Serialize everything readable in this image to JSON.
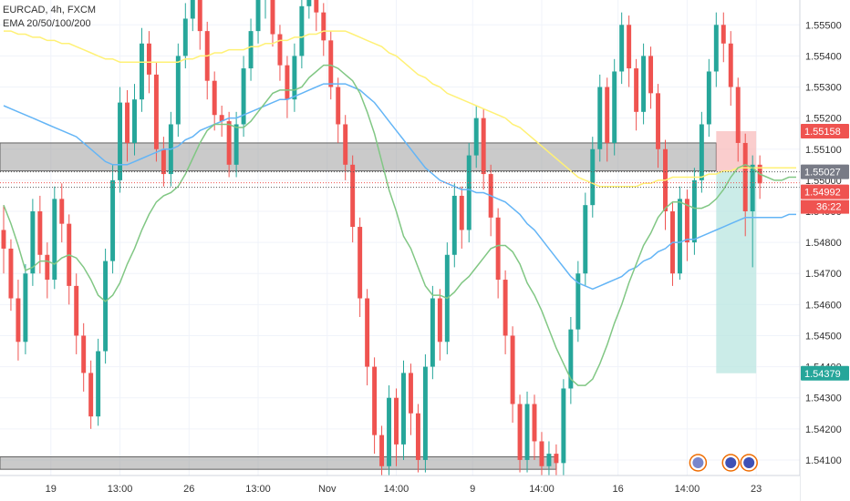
{
  "legend": {
    "symbol_line": "EURCAD, 4h, FXCM",
    "indicator_line": "EMA 20/50/100/200"
  },
  "colors": {
    "up": "#26a69a",
    "down": "#ef5350",
    "ema20": "#81c784",
    "ema50": "#64b5f6",
    "ema100": "#fff176",
    "zone": "#9e9e9e",
    "stop_zone": "#f8bcbc",
    "target_zone": "#b9e6e0",
    "grid": "#f0f3fa"
  },
  "chart_data": {
    "type": "candlestick",
    "title": "",
    "y_axis": {
      "range": [
        1.5405,
        1.5558
      ],
      "ticks": [
        1.555,
        1.554,
        1.553,
        1.552,
        1.551,
        1.55,
        1.549,
        1.548,
        1.547,
        1.546,
        1.545,
        1.544,
        1.543,
        1.542,
        1.541
      ],
      "tick_labels": [
        "1.55500",
        "1.55400",
        "1.55300",
        "1.55200",
        "1.55100",
        "1.55000",
        "1.54900",
        "1.54800",
        "1.54700",
        "1.54600",
        "1.54500",
        "1.54400",
        "1.54300",
        "1.54200",
        "1.54100"
      ]
    },
    "x_axis": {
      "range": [
        0,
        110
      ],
      "ticks": [
        {
          "x": 7,
          "label": "19"
        },
        {
          "x": 16.5,
          "label": "13:00"
        },
        {
          "x": 26,
          "label": "26"
        },
        {
          "x": 35.5,
          "label": "13:00"
        },
        {
          "x": 45,
          "label": "Nov"
        },
        {
          "x": 54.5,
          "label": "14:00"
        },
        {
          "x": 65,
          "label": "9"
        },
        {
          "x": 74.5,
          "label": "14:00"
        },
        {
          "x": 85,
          "label": "16"
        },
        {
          "x": 94.5,
          "label": "14:00"
        },
        {
          "x": 104,
          "label": "23"
        }
      ]
    },
    "zones": [
      {
        "name": "resistance",
        "from": 1.5503,
        "to": 1.5512,
        "x_from": 0,
        "x_to": 98.5
      },
      {
        "name": "support",
        "from": 1.5407,
        "to": 1.5411,
        "x_from": 0,
        "x_to": 76.5
      },
      {
        "name": "stop",
        "from": 1.55027,
        "to": 1.55158,
        "x_from": 98.5,
        "x_to": 104
      },
      {
        "name": "target",
        "from": 1.54379,
        "to": 1.55027,
        "x_from": 98.5,
        "x_to": 104
      }
    ],
    "price_labels": [
      {
        "value": 1.55158,
        "label": "1.55158",
        "kind": "stop"
      },
      {
        "value": 1.55027,
        "label": "1.55027",
        "kind": "entry"
      },
      {
        "value": 1.54992,
        "label": "1.54992",
        "kind": "last"
      },
      {
        "value": 1.54379,
        "label": "1.54379",
        "kind": "target"
      }
    ],
    "countdown": "36:22",
    "candles": [
      [
        1.5484,
        1.5478,
        1.5492,
        1.547
      ],
      [
        1.5478,
        1.5462,
        1.5481,
        1.5458
      ],
      [
        1.5462,
        1.5448,
        1.5468,
        1.5442
      ],
      [
        1.5448,
        1.547,
        1.5473,
        1.5444
      ],
      [
        1.547,
        1.549,
        1.5494,
        1.5466
      ],
      [
        1.549,
        1.5476,
        1.5495,
        1.547
      ],
      [
        1.5476,
        1.5468,
        1.548,
        1.5462
      ],
      [
        1.5468,
        1.5494,
        1.5498,
        1.5465
      ],
      [
        1.5494,
        1.5486,
        1.5499,
        1.548
      ],
      [
        1.5486,
        1.5466,
        1.5489,
        1.546
      ],
      [
        1.5466,
        1.545,
        1.547,
        1.5444
      ],
      [
        1.545,
        1.5438,
        1.5454,
        1.5432
      ],
      [
        1.5438,
        1.5424,
        1.5442,
        1.542
      ],
      [
        1.5424,
        1.5445,
        1.5449,
        1.5421
      ],
      [
        1.5445,
        1.5474,
        1.5478,
        1.5441
      ],
      [
        1.5474,
        1.55,
        1.5505,
        1.547
      ],
      [
        1.55,
        1.5525,
        1.553,
        1.5496
      ],
      [
        1.5525,
        1.5512,
        1.5529,
        1.5506
      ],
      [
        1.5512,
        1.5526,
        1.5531,
        1.5508
      ],
      [
        1.5526,
        1.5544,
        1.5549,
        1.5522
      ],
      [
        1.5544,
        1.5534,
        1.5548,
        1.5528
      ],
      [
        1.5534,
        1.551,
        1.5538,
        1.5506
      ],
      [
        1.551,
        1.5502,
        1.5514,
        1.5498
      ],
      [
        1.5502,
        1.5518,
        1.5522,
        1.5498
      ],
      [
        1.5518,
        1.554,
        1.5544,
        1.5514
      ],
      [
        1.554,
        1.5552,
        1.5557,
        1.5536
      ],
      [
        1.5552,
        1.556,
        1.5563,
        1.5548
      ],
      [
        1.556,
        1.5548,
        1.5564,
        1.5542
      ],
      [
        1.5548,
        1.5532,
        1.5551,
        1.5526
      ],
      [
        1.5532,
        1.5521,
        1.5535,
        1.5516
      ],
      [
        1.5521,
        1.5519,
        1.5524,
        1.5514
      ],
      [
        1.5519,
        1.5505,
        1.5522,
        1.5501
      ],
      [
        1.5505,
        1.5518,
        1.5522,
        1.5501
      ],
      [
        1.5518,
        1.5536,
        1.554,
        1.5514
      ],
      [
        1.5536,
        1.5548,
        1.5552,
        1.5532
      ],
      [
        1.5548,
        1.5558,
        1.5562,
        1.5544
      ],
      [
        1.5558,
        1.556,
        1.5564,
        1.5552
      ],
      [
        1.556,
        1.5547,
        1.5563,
        1.5543
      ],
      [
        1.5547,
        1.5537,
        1.555,
        1.5532
      ],
      [
        1.5537,
        1.5526,
        1.554,
        1.552
      ],
      [
        1.5526,
        1.554,
        1.5544,
        1.5522
      ],
      [
        1.554,
        1.5556,
        1.556,
        1.5536
      ],
      [
        1.5556,
        1.556,
        1.5564,
        1.5552
      ],
      [
        1.556,
        1.5554,
        1.5563,
        1.5548
      ],
      [
        1.5554,
        1.5545,
        1.5557,
        1.554
      ],
      [
        1.5545,
        1.553,
        1.5548,
        1.5526
      ],
      [
        1.553,
        1.5518,
        1.5533,
        1.5512
      ],
      [
        1.5518,
        1.5505,
        1.5521,
        1.55
      ],
      [
        1.5505,
        1.5485,
        1.5508,
        1.548
      ],
      [
        1.5485,
        1.5462,
        1.5488,
        1.5456
      ],
      [
        1.5462,
        1.544,
        1.5465,
        1.5434
      ],
      [
        1.544,
        1.5418,
        1.5443,
        1.5412
      ],
      [
        1.5418,
        1.5408,
        1.5421,
        1.5405
      ],
      [
        1.5408,
        1.543,
        1.5434,
        1.5405
      ],
      [
        1.543,
        1.5415,
        1.5433,
        1.5408
      ],
      [
        1.5415,
        1.5438,
        1.5442,
        1.541
      ],
      [
        1.5438,
        1.5425,
        1.5441,
        1.5418
      ],
      [
        1.5425,
        1.541,
        1.5428,
        1.5406
      ],
      [
        1.541,
        1.544,
        1.5444,
        1.5406
      ],
      [
        1.544,
        1.5462,
        1.5466,
        1.5436
      ],
      [
        1.5462,
        1.5448,
        1.5465,
        1.5442
      ],
      [
        1.5448,
        1.5476,
        1.548,
        1.5444
      ],
      [
        1.5476,
        1.5495,
        1.5499,
        1.5472
      ],
      [
        1.5495,
        1.5484,
        1.5498,
        1.5478
      ],
      [
        1.5484,
        1.5508,
        1.5512,
        1.548
      ],
      [
        1.5508,
        1.552,
        1.5524,
        1.5504
      ],
      [
        1.552,
        1.5502,
        1.5523,
        1.5497
      ],
      [
        1.5502,
        1.5488,
        1.5505,
        1.5482
      ],
      [
        1.5488,
        1.5468,
        1.5491,
        1.5462
      ],
      [
        1.5468,
        1.545,
        1.5471,
        1.5444
      ],
      [
        1.545,
        1.5428,
        1.5453,
        1.5422
      ],
      [
        1.5428,
        1.541,
        1.5431,
        1.5406
      ],
      [
        1.541,
        1.5428,
        1.5432,
        1.5406
      ],
      [
        1.5428,
        1.5416,
        1.5431,
        1.541
      ],
      [
        1.5416,
        1.5408,
        1.5419,
        1.5405
      ],
      [
        1.5408,
        1.5412,
        1.5416,
        1.5405
      ],
      [
        1.5412,
        1.5409,
        1.5415,
        1.5405
      ],
      [
        1.5409,
        1.5433,
        1.5436,
        1.5405
      ],
      [
        1.5433,
        1.5452,
        1.5456,
        1.5428
      ],
      [
        1.5452,
        1.547,
        1.5474,
        1.5448
      ],
      [
        1.547,
        1.5492,
        1.5496,
        1.5466
      ],
      [
        1.5492,
        1.551,
        1.5514,
        1.5488
      ],
      [
        1.551,
        1.553,
        1.5534,
        1.5506
      ],
      [
        1.553,
        1.5512,
        1.5533,
        1.5506
      ],
      [
        1.5512,
        1.5535,
        1.5539,
        1.5508
      ],
      [
        1.5535,
        1.555,
        1.5554,
        1.5531
      ],
      [
        1.555,
        1.5536,
        1.5553,
        1.553
      ],
      [
        1.5536,
        1.5522,
        1.5539,
        1.5516
      ],
      [
        1.5522,
        1.554,
        1.5544,
        1.5518
      ],
      [
        1.554,
        1.5528,
        1.5543,
        1.5523
      ],
      [
        1.5528,
        1.551,
        1.5531,
        1.5504
      ],
      [
        1.551,
        1.549,
        1.5513,
        1.5484
      ],
      [
        1.549,
        1.547,
        1.5493,
        1.5466
      ],
      [
        1.547,
        1.5494,
        1.5498,
        1.5468
      ],
      [
        1.5494,
        1.548,
        1.5497,
        1.5474
      ],
      [
        1.548,
        1.55,
        1.5504,
        1.5476
      ],
      [
        1.55,
        1.5518,
        1.5522,
        1.5496
      ],
      [
        1.5518,
        1.5535,
        1.5539,
        1.5514
      ],
      [
        1.5535,
        1.555,
        1.5554,
        1.553
      ],
      [
        1.555,
        1.5544,
        1.5554,
        1.5538
      ],
      [
        1.5544,
        1.553,
        1.5548,
        1.5524
      ],
      [
        1.553,
        1.5512,
        1.5533,
        1.5506
      ],
      [
        1.5512,
        1.549,
        1.5515,
        1.5482
      ],
      [
        1.549,
        1.5505,
        1.5508,
        1.5472
      ],
      [
        1.5505,
        1.5499,
        1.5508,
        1.5494
      ]
    ],
    "ema": {
      "ema20": [
        1.5492,
        1.5486,
        1.5479,
        1.5471,
        1.5472,
        1.5474,
        1.5474,
        1.5473,
        1.5475,
        1.5476,
        1.5475,
        1.5472,
        1.5468,
        1.5463,
        1.5461,
        1.5463,
        1.5467,
        1.5473,
        1.5478,
        1.5484,
        1.5489,
        1.5493,
        1.5495,
        1.5496,
        1.5498,
        1.5502,
        1.5507,
        1.5512,
        1.5516,
        1.5518,
        1.5518,
        1.5518,
        1.5517,
        1.5517,
        1.5519,
        1.5522,
        1.5525,
        1.5528,
        1.5529,
        1.5529,
        1.5529,
        1.553,
        1.5533,
        1.5535,
        1.5537,
        1.5537,
        1.5536,
        1.5534,
        1.5532,
        1.5528,
        1.5522,
        1.5515,
        1.5506,
        1.5497,
        1.549,
        1.5482,
        1.5478,
        1.5472,
        1.5466,
        1.5463,
        1.5463,
        1.5462,
        1.5464,
        1.5467,
        1.5469,
        1.5472,
        1.5475,
        1.5478,
        1.5479,
        1.5479,
        1.5477,
        1.5473,
        1.5467,
        1.5463,
        1.5458,
        1.5452,
        1.5446,
        1.5441,
        1.5436,
        1.5434,
        1.5434,
        1.5436,
        1.5441,
        1.5447,
        1.5454,
        1.546,
        1.5467,
        1.5473,
        1.5479,
        1.5483,
        1.5488,
        1.5491,
        1.5493,
        1.5493,
        1.5492,
        1.5491,
        1.5491,
        1.5492,
        1.5494,
        1.5497,
        1.5501,
        1.5504,
        1.5505,
        1.5504,
        1.5502,
        1.5501,
        1.55,
        1.55,
        1.5501,
        1.5501
      ],
      "ema50": [
        1.5524,
        1.5523,
        1.5522,
        1.5521,
        1.552,
        1.5519,
        1.5518,
        1.5517,
        1.5516,
        1.5515,
        1.5514,
        1.5512,
        1.551,
        1.5508,
        1.5506,
        1.5505,
        1.5505,
        1.5505,
        1.5506,
        1.5507,
        1.5508,
        1.5509,
        1.551,
        1.551,
        1.5511,
        1.5513,
        1.5514,
        1.5516,
        1.5517,
        1.5518,
        1.5519,
        1.552,
        1.552,
        1.5521,
        1.5522,
        1.5523,
        1.5524,
        1.5525,
        1.5526,
        1.5526,
        1.5527,
        1.5528,
        1.5529,
        1.553,
        1.5531,
        1.5531,
        1.5531,
        1.5531,
        1.553,
        1.5529,
        1.5527,
        1.5525,
        1.5522,
        1.5519,
        1.5516,
        1.5513,
        1.551,
        1.5507,
        1.5504,
        1.5502,
        1.55,
        1.5499,
        1.5498,
        1.5497,
        1.5497,
        1.5496,
        1.5496,
        1.5495,
        1.5494,
        1.5493,
        1.5491,
        1.5489,
        1.5486,
        1.5484,
        1.5481,
        1.5478,
        1.5475,
        1.5472,
        1.5469,
        1.5467,
        1.5466,
        1.5465,
        1.5466,
        1.5467,
        1.5468,
        1.5469,
        1.5471,
        1.5472,
        1.5474,
        1.5475,
        1.5477,
        1.5478,
        1.548,
        1.548,
        1.5481,
        1.5481,
        1.5482,
        1.5483,
        1.5484,
        1.5485,
        1.5486,
        1.5487,
        1.5488,
        1.5488,
        1.5488,
        1.5488,
        1.5488,
        1.5488,
        1.5489,
        1.5489
      ],
      "ema100": [
        1.5548,
        1.5548,
        1.5547,
        1.5547,
        1.5546,
        1.5546,
        1.5545,
        1.5545,
        1.5544,
        1.5544,
        1.5543,
        1.5542,
        1.5541,
        1.554,
        1.5539,
        1.5539,
        1.5538,
        1.5538,
        1.5538,
        1.5538,
        1.5538,
        1.5538,
        1.5538,
        1.5538,
        1.5538,
        1.5539,
        1.5539,
        1.554,
        1.554,
        1.5541,
        1.5541,
        1.5542,
        1.5542,
        1.5542,
        1.5543,
        1.5543,
        1.5544,
        1.5544,
        1.5545,
        1.5545,
        1.5546,
        1.5546,
        1.5547,
        1.5547,
        1.5548,
        1.5548,
        1.5548,
        1.5548,
        1.5547,
        1.5546,
        1.5545,
        1.5544,
        1.5543,
        1.5541,
        1.554,
        1.5538,
        1.5536,
        1.5534,
        1.5533,
        1.5531,
        1.553,
        1.5528,
        1.5527,
        1.5526,
        1.5525,
        1.5524,
        1.5523,
        1.5522,
        1.5521,
        1.552,
        1.5518,
        1.5517,
        1.5515,
        1.5513,
        1.5511,
        1.5509,
        1.5507,
        1.5505,
        1.5503,
        1.5501,
        1.55,
        1.5499,
        1.5498,
        1.5498,
        1.5498,
        1.5498,
        1.5498,
        1.5498,
        1.5499,
        1.5499,
        1.55,
        1.55,
        1.5501,
        1.5501,
        1.5501,
        1.5501,
        1.5501,
        1.5502,
        1.5502,
        1.5503,
        1.5503,
        1.5504,
        1.5504,
        1.5504,
        1.5504,
        1.5504,
        1.5504,
        1.5504,
        1.5504,
        1.5504
      ]
    }
  }
}
